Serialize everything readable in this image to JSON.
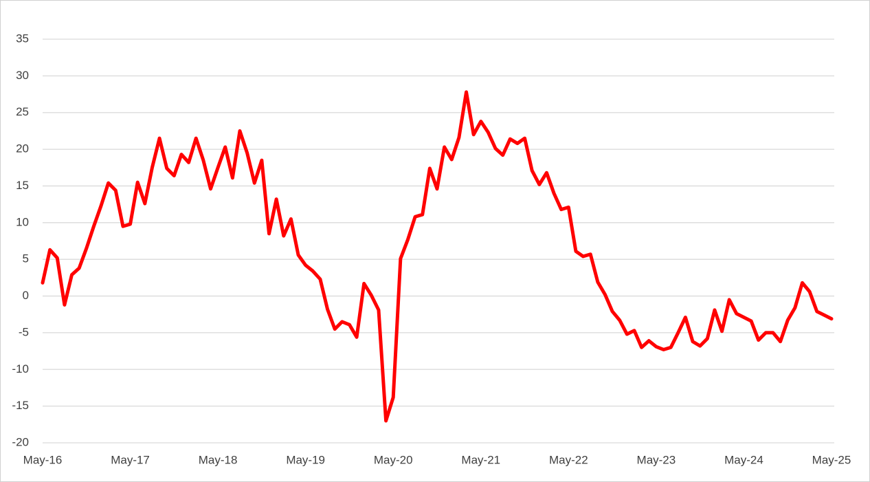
{
  "chart_data": {
    "type": "line",
    "categories": [
      "May-16",
      null,
      null,
      null,
      null,
      null,
      null,
      null,
      null,
      null,
      null,
      null,
      "May-17",
      null,
      null,
      null,
      null,
      null,
      null,
      null,
      null,
      null,
      null,
      null,
      "May-18",
      null,
      null,
      null,
      null,
      null,
      null,
      null,
      null,
      null,
      null,
      null,
      "May-19",
      null,
      null,
      null,
      null,
      null,
      null,
      null,
      null,
      null,
      null,
      null,
      "May-20",
      null,
      null,
      null,
      null,
      null,
      null,
      null,
      null,
      null,
      null,
      null,
      "May-21",
      null,
      null,
      null,
      null,
      null,
      null,
      null,
      null,
      null,
      null,
      null,
      "May-22",
      null,
      null,
      null,
      null,
      null,
      null,
      null,
      null,
      null,
      null,
      null,
      "May-23",
      null,
      null,
      null,
      null,
      null,
      null,
      null,
      null,
      null,
      null,
      null,
      "May-24",
      null,
      null,
      null,
      null,
      null,
      null,
      null,
      null,
      null,
      null,
      null,
      "May-25"
    ],
    "values": [
      1.8,
      6.3,
      5.2,
      -1.2,
      2.9,
      3.8,
      6.5,
      9.5,
      12.3,
      15.4,
      14.4,
      9.5,
      9.8,
      15.5,
      12.6,
      17.5,
      21.5,
      17.4,
      16.4,
      19.3,
      18.2,
      21.5,
      18.5,
      14.6,
      17.5,
      20.3,
      16.1,
      22.5,
      19.5,
      15.4,
      18.5,
      8.5,
      13.2,
      8.2,
      10.5,
      5.6,
      4.2,
      3.4,
      2.3,
      -1.8,
      -4.5,
      -3.5,
      -3.9,
      -5.6,
      1.7,
      0.1,
      -1.9,
      -17.0,
      -13.8,
      5.1,
      7.7,
      10.8,
      11.1,
      17.4,
      14.6,
      20.3,
      18.6,
      21.6,
      27.8,
      22.0,
      23.8,
      22.3,
      20.1,
      19.2,
      21.4,
      20.8,
      21.5,
      17.1,
      15.2,
      16.8,
      14.0,
      11.8,
      12.1,
      6.1,
      5.4,
      5.7,
      1.9,
      0.2,
      -2.1,
      -3.3,
      -5.2,
      -4.7,
      -7.0,
      -6.1,
      -6.9,
      -7.3,
      -7.0,
      -5.0,
      -2.9,
      -6.2,
      -6.8,
      -5.8,
      -1.9,
      -4.8,
      -0.5,
      -2.4,
      -2.9,
      -3.4,
      -6.0,
      -5.0,
      -5.0,
      -6.2,
      -3.3,
      -1.6,
      1.8,
      0.6,
      -2.1,
      -2.6,
      -3.1
    ],
    "color": "#ff0000",
    "ylim": [
      -20,
      35
    ],
    "yticks": [
      -20,
      -15,
      -10,
      -5,
      0,
      5,
      10,
      15,
      20,
      25,
      30,
      35
    ],
    "grid": true
  }
}
